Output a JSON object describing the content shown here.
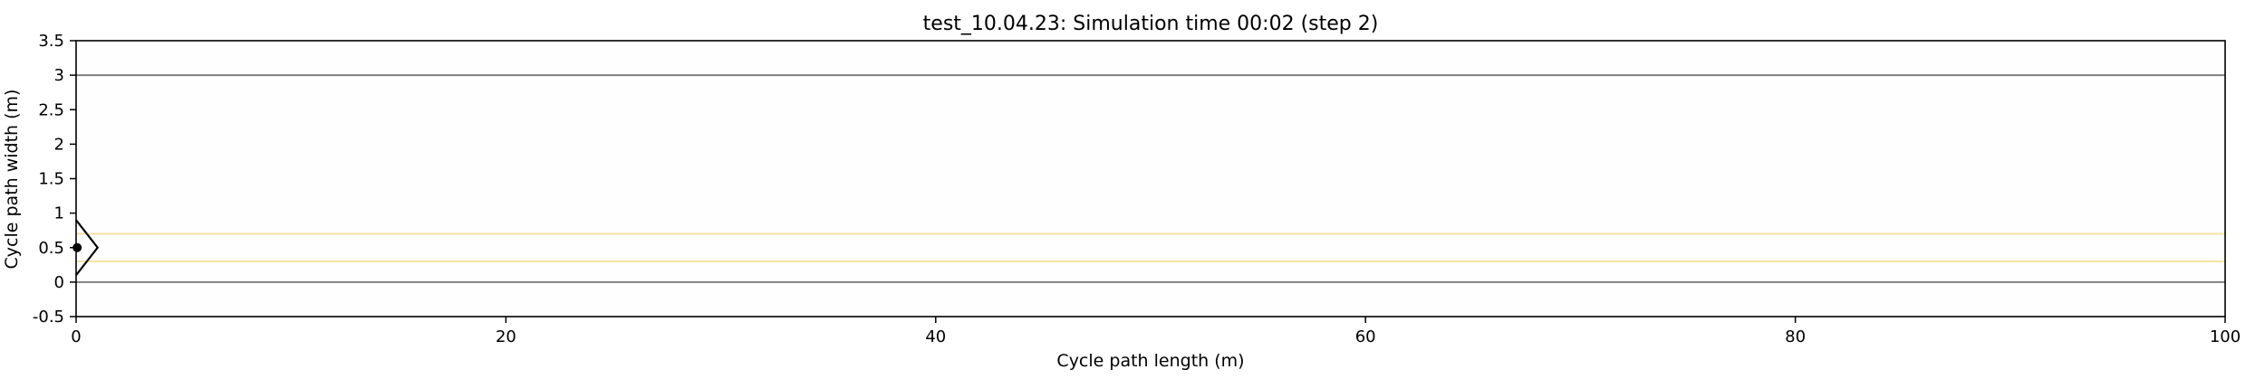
{
  "chart_data": {
    "type": "line",
    "title": "test_10.04.23: Simulation time 00:02 (step 2)",
    "xlabel": "Cycle path length (m)",
    "ylabel": "Cycle path width (m)",
    "xlim": [
      0,
      100
    ],
    "ylim": [
      -0.5,
      3.5
    ],
    "xticks": [
      0,
      20,
      40,
      60,
      80,
      100
    ],
    "xtick_labels": [
      "0",
      "20",
      "40",
      "60",
      "80",
      "100"
    ],
    "yticks": [
      -0.5,
      0,
      0.5,
      1,
      1.5,
      2,
      2.5,
      3,
      3.5
    ],
    "ytick_labels": [
      "-0.5",
      "0",
      "0.5",
      "1",
      "1.5",
      "2",
      "2.5",
      "3",
      "3.5"
    ],
    "grid": false,
    "series": [
      {
        "x": [
          0,
          100
        ],
        "y": [
          0,
          0
        ],
        "color": "#808080"
      },
      {
        "x": [
          0,
          100
        ],
        "y": [
          3,
          3
        ],
        "color": "#808080"
      },
      {
        "x": [
          0,
          100
        ],
        "y": [
          0.3,
          0.3
        ],
        "color": "#f5e3a0"
      },
      {
        "x": [
          0,
          100
        ],
        "y": [
          0.7,
          0.7
        ],
        "color": "#f5e3a0"
      }
    ],
    "markers": [
      {
        "type": "cyclist-outline",
        "outline_x": [
          0,
          1,
          0
        ],
        "outline_y": [
          0.9,
          0.5,
          0.1
        ],
        "center_x": 0.05,
        "center_y": 0.5
      }
    ]
  }
}
